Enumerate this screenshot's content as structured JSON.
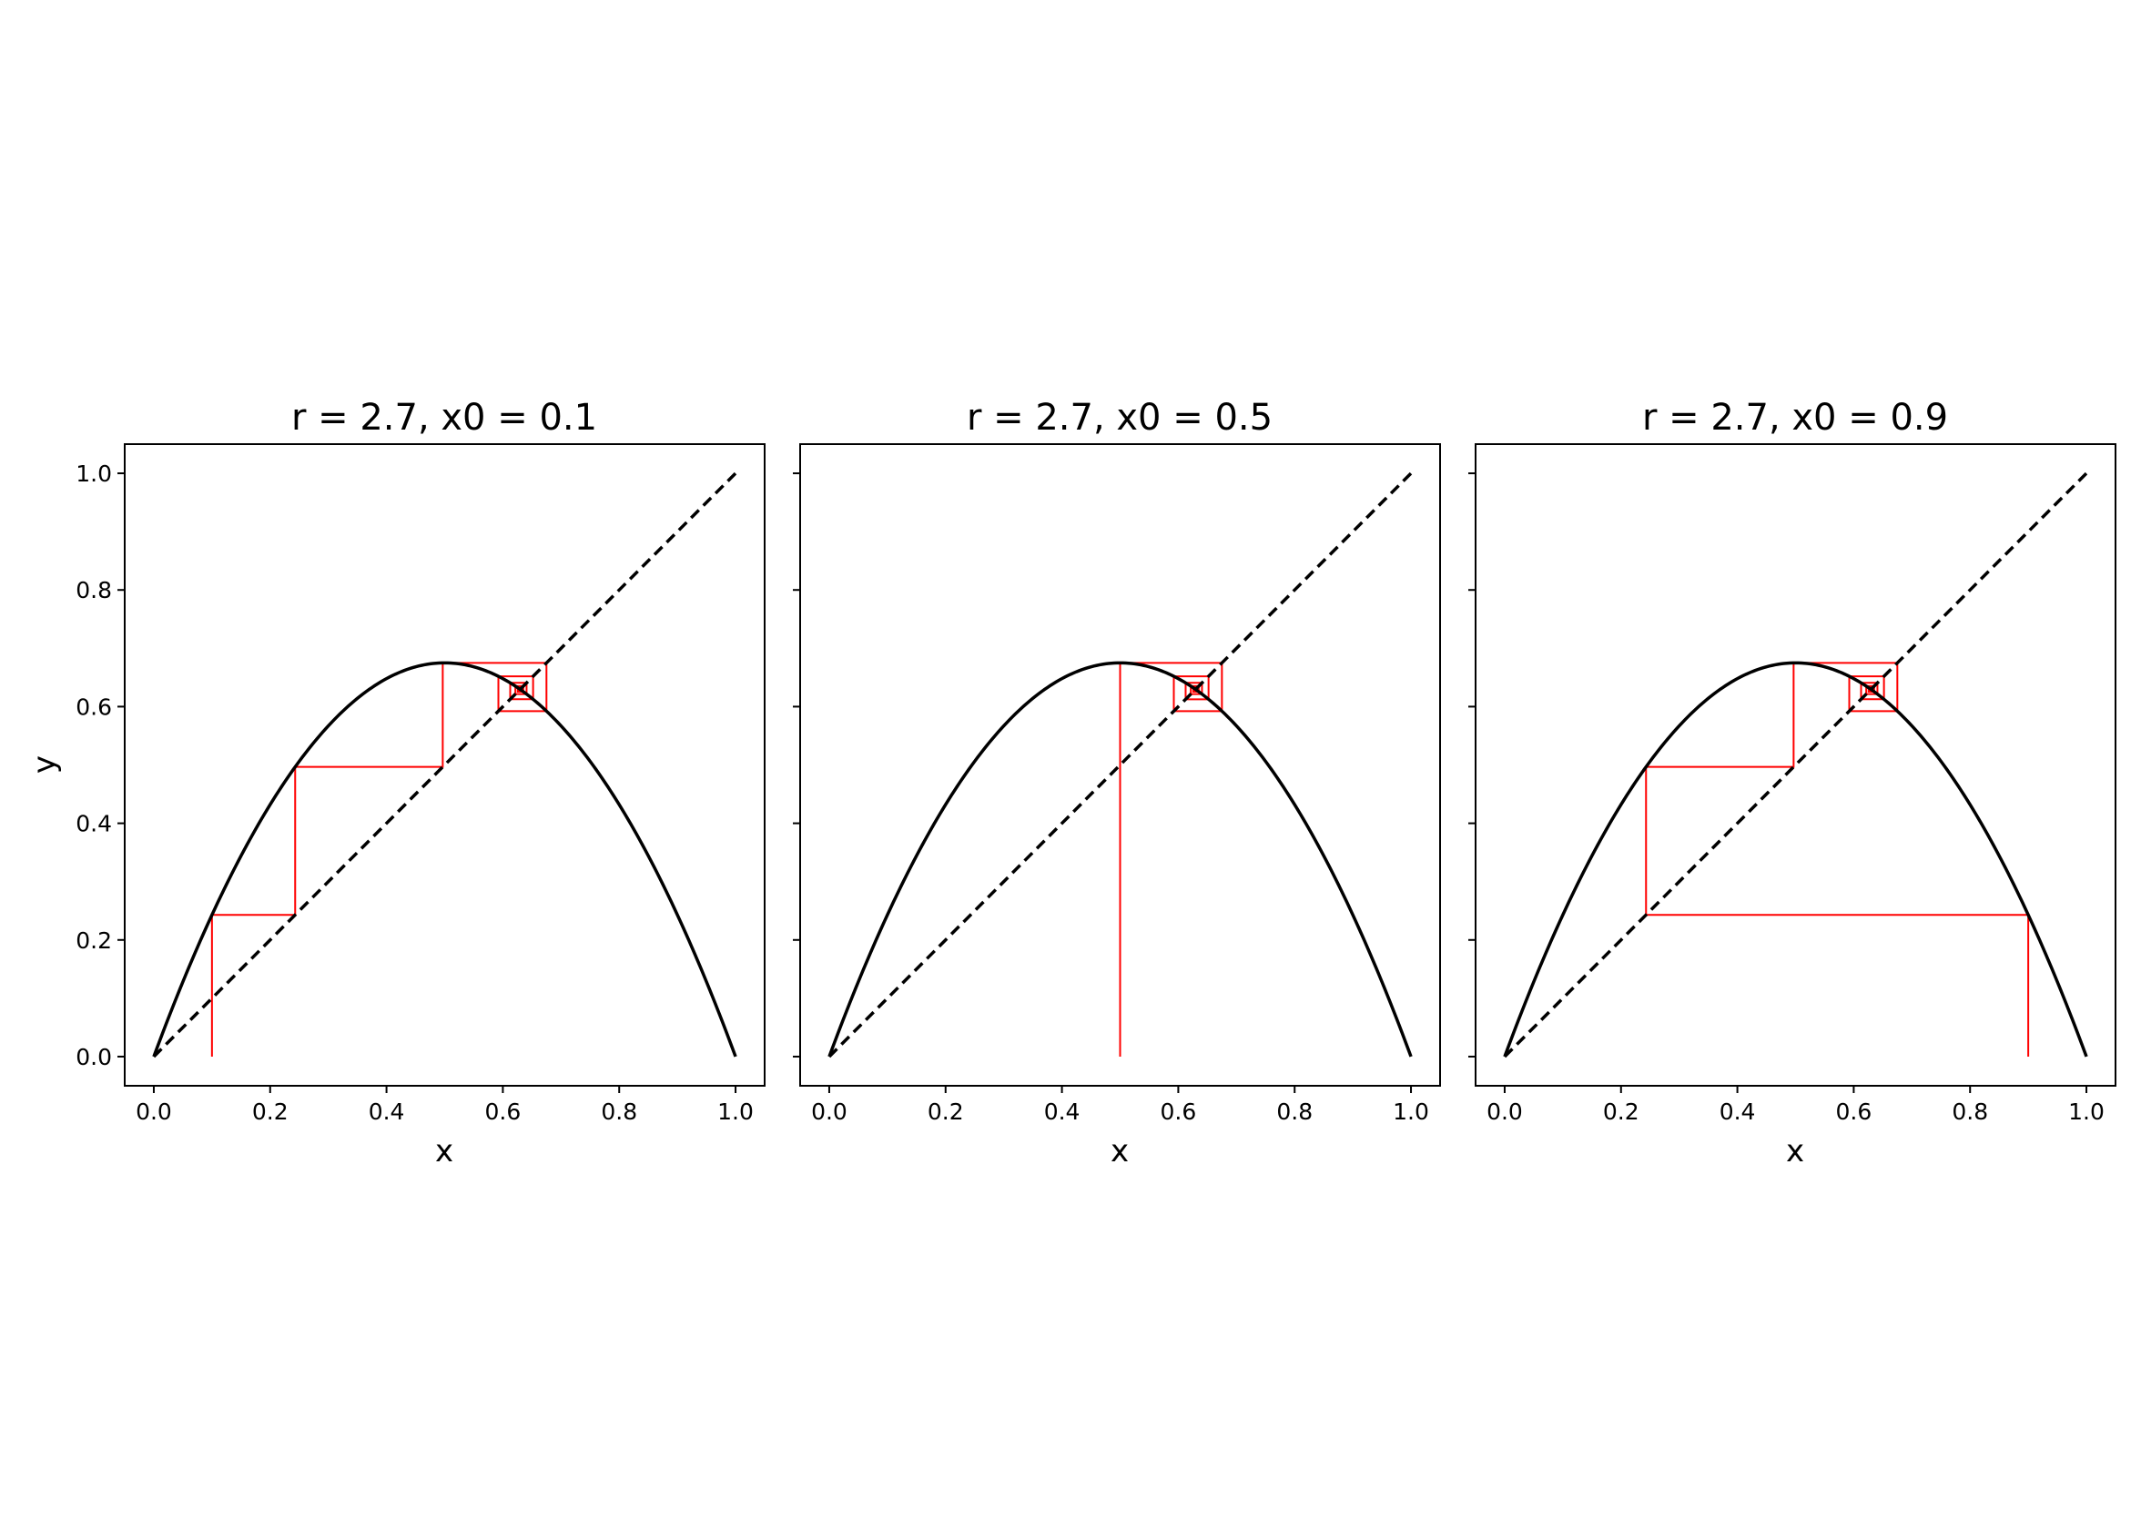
{
  "chart_data": [
    {
      "type": "line",
      "title": "r = 2.7, x0 = 0.1",
      "xlabel": "x",
      "ylabel": "y",
      "r": 2.7,
      "x0": 0.1,
      "xlim": [
        -0.05,
        1.05
      ],
      "ylim": [
        -0.05,
        1.05
      ],
      "x_ticks": [
        "0.0",
        "0.2",
        "0.4",
        "0.6",
        "0.8",
        "1.0"
      ],
      "y_ticks": [
        "0.0",
        "0.2",
        "0.4",
        "0.6",
        "0.8",
        "1.0"
      ],
      "show_y_tick_labels": true,
      "series": [
        {
          "style": "solid-black",
          "curve": "y = r·x·(1−x)"
        },
        {
          "style": "dashed-black",
          "curve": "y = x"
        },
        {
          "style": "red-cobweb",
          "color": "#ff0000",
          "iterations": 30
        }
      ]
    },
    {
      "type": "line",
      "title": "r = 2.7, x0 = 0.5",
      "xlabel": "x",
      "ylabel": "",
      "r": 2.7,
      "x0": 0.5,
      "xlim": [
        -0.05,
        1.05
      ],
      "ylim": [
        -0.05,
        1.05
      ],
      "x_ticks": [
        "0.0",
        "0.2",
        "0.4",
        "0.6",
        "0.8",
        "1.0"
      ],
      "y_ticks": [
        "",
        "",
        "",
        "",
        "",
        ""
      ],
      "show_y_tick_labels": false,
      "series": [
        {
          "style": "solid-black",
          "curve": "y = r·x·(1−x)"
        },
        {
          "style": "dashed-black",
          "curve": "y = x"
        },
        {
          "style": "red-cobweb",
          "color": "#ff0000",
          "iterations": 30
        }
      ]
    },
    {
      "type": "line",
      "title": "r = 2.7, x0 = 0.9",
      "xlabel": "x",
      "ylabel": "",
      "r": 2.7,
      "x0": 0.9,
      "xlim": [
        -0.05,
        1.05
      ],
      "ylim": [
        -0.05,
        1.05
      ],
      "x_ticks": [
        "0.0",
        "0.2",
        "0.4",
        "0.6",
        "0.8",
        "1.0"
      ],
      "y_ticks": [
        "",
        "",
        "",
        "",
        "",
        ""
      ],
      "show_y_tick_labels": false,
      "series": [
        {
          "style": "solid-black",
          "curve": "y = r·x·(1−x)"
        },
        {
          "style": "dashed-black",
          "curve": "y = x"
        },
        {
          "style": "red-cobweb",
          "color": "#ff0000",
          "iterations": 30
        }
      ]
    }
  ]
}
